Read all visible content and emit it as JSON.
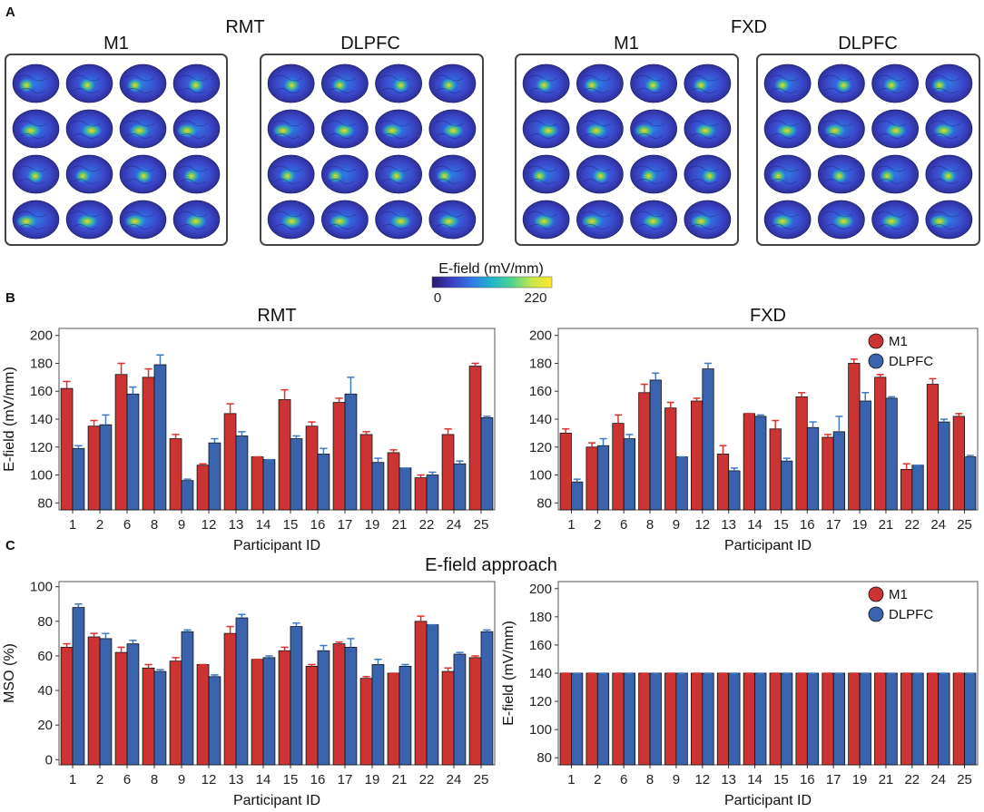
{
  "panels": {
    "a": {
      "label": "A",
      "rmt_title": "RMT",
      "fxd_title": "FXD",
      "groups": [
        "M1",
        "DLPFC",
        "M1",
        "DLPFC"
      ]
    },
    "b": {
      "label": "B"
    },
    "c": {
      "label": "C",
      "approach_title": "E-field approach"
    }
  },
  "colorbar": {
    "title": "E-field (mV/mm)",
    "min_label": "0",
    "max_label": "220",
    "stops": [
      "#2a1a6e",
      "#3b3fc4",
      "#2f7be6",
      "#22b5c8",
      "#4fd38f",
      "#c9e64a",
      "#fde725"
    ]
  },
  "legend": {
    "m1": "M1",
    "dlpfc": "DLPFC"
  },
  "colors": {
    "m1": "#cc3333",
    "dlpfc": "#3a63ad",
    "m1_err": "#e0302e",
    "dlpfc_err": "#3f79c6"
  },
  "chart_data": [
    {
      "id": "B-RMT",
      "type": "bar",
      "title": "RMT",
      "xlabel": "Participant ID",
      "ylabel": "E-field (mV/mm)",
      "ylim": [
        75,
        205
      ],
      "yticks": [
        80,
        100,
        120,
        140,
        160,
        180,
        200
      ],
      "categories": [
        "1",
        "2",
        "6",
        "8",
        "9",
        "12",
        "13",
        "14",
        "15",
        "16",
        "17",
        "19",
        "21",
        "22",
        "24",
        "25"
      ],
      "series": [
        {
          "name": "M1",
          "values": [
            162,
            135,
            172,
            170,
            126,
            107,
            144,
            113,
            154,
            135,
            152,
            129,
            116,
            98,
            129,
            178
          ],
          "errors": [
            5,
            4,
            8,
            6,
            3,
            1,
            7,
            0,
            7,
            3,
            3,
            2,
            2,
            2,
            4,
            2
          ]
        },
        {
          "name": "DLPFC",
          "values": [
            119,
            136,
            158,
            179,
            96,
            123,
            128,
            111,
            126,
            115,
            158,
            109,
            105,
            100,
            108,
            141
          ],
          "errors": [
            2,
            7,
            5,
            7,
            1,
            3,
            3,
            0,
            2,
            4,
            12,
            3,
            0,
            2,
            2,
            1
          ]
        }
      ],
      "legend": false
    },
    {
      "id": "B-FXD",
      "type": "bar",
      "title": "FXD",
      "xlabel": "Participant ID",
      "ylabel": "",
      "ylim": [
        75,
        205
      ],
      "yticks": [
        80,
        100,
        120,
        140,
        160,
        180,
        200
      ],
      "categories": [
        "1",
        "2",
        "6",
        "8",
        "9",
        "12",
        "13",
        "14",
        "15",
        "16",
        "17",
        "19",
        "21",
        "22",
        "24",
        "25"
      ],
      "series": [
        {
          "name": "M1",
          "values": [
            130,
            120,
            137,
            159,
            148,
            153,
            115,
            144,
            133,
            156,
            127,
            180,
            170,
            104,
            165,
            142
          ],
          "errors": [
            3,
            3,
            6,
            6,
            4,
            2,
            6,
            0,
            6,
            3,
            2,
            3,
            2,
            4,
            4,
            2
          ]
        },
        {
          "name": "DLPFC",
          "values": [
            95,
            121,
            126,
            168,
            113,
            176,
            103,
            142,
            110,
            134,
            131,
            153,
            155,
            107,
            138,
            113
          ],
          "errors": [
            2,
            5,
            3,
            5,
            0,
            4,
            2,
            1,
            2,
            4,
            11,
            6,
            1,
            0,
            2,
            1
          ]
        }
      ],
      "legend": true
    },
    {
      "id": "C-MSO",
      "type": "bar",
      "title": "",
      "xlabel": "Participant ID",
      "ylabel": "MSO (%)",
      "ylim": [
        -3,
        103
      ],
      "yticks": [
        0,
        20,
        40,
        60,
        80,
        100
      ],
      "categories": [
        "1",
        "2",
        "6",
        "8",
        "9",
        "12",
        "13",
        "14",
        "15",
        "16",
        "17",
        "19",
        "21",
        "22",
        "24",
        "25"
      ],
      "series": [
        {
          "name": "M1",
          "values": [
            65,
            71,
            62,
            53,
            57,
            55,
            73,
            58,
            63,
            54,
            67,
            47,
            50,
            80,
            51,
            59
          ],
          "errors": [
            2,
            2,
            3,
            2,
            2,
            0,
            4,
            0,
            2,
            1,
            1,
            1,
            0,
            3,
            2,
            1
          ]
        },
        {
          "name": "DLPFC",
          "values": [
            88,
            70,
            67,
            51,
            74,
            48,
            82,
            59,
            77,
            63,
            65,
            55,
            54,
            78,
            61,
            74
          ],
          "errors": [
            2,
            3,
            2,
            1,
            1,
            1,
            2,
            1,
            2,
            3,
            5,
            3,
            1,
            0,
            1,
            1
          ]
        }
      ],
      "legend": false
    },
    {
      "id": "C-EFIELD",
      "type": "bar",
      "title": "",
      "xlabel": "Participant ID",
      "ylabel": "E-field (mV/mm)",
      "ylim": [
        75,
        205
      ],
      "yticks": [
        80,
        100,
        120,
        140,
        160,
        180,
        200
      ],
      "categories": [
        "1",
        "2",
        "6",
        "8",
        "9",
        "12",
        "13",
        "14",
        "15",
        "16",
        "17",
        "19",
        "21",
        "22",
        "24",
        "25"
      ],
      "series": [
        {
          "name": "M1",
          "values": [
            140,
            140,
            140,
            140,
            140,
            140,
            140,
            140,
            140,
            140,
            140,
            140,
            140,
            140,
            140,
            140
          ],
          "errors": [
            0,
            0,
            0,
            0,
            0,
            0,
            0,
            0,
            0,
            0,
            0,
            0,
            0,
            0,
            0,
            0
          ]
        },
        {
          "name": "DLPFC",
          "values": [
            140,
            140,
            140,
            140,
            140,
            140,
            140,
            140,
            140,
            140,
            140,
            140,
            140,
            140,
            140,
            140
          ],
          "errors": [
            0,
            0,
            0,
            0,
            0,
            0,
            0,
            0,
            0,
            0,
            0,
            0,
            0,
            0,
            0,
            0
          ]
        }
      ],
      "legend": true
    }
  ]
}
